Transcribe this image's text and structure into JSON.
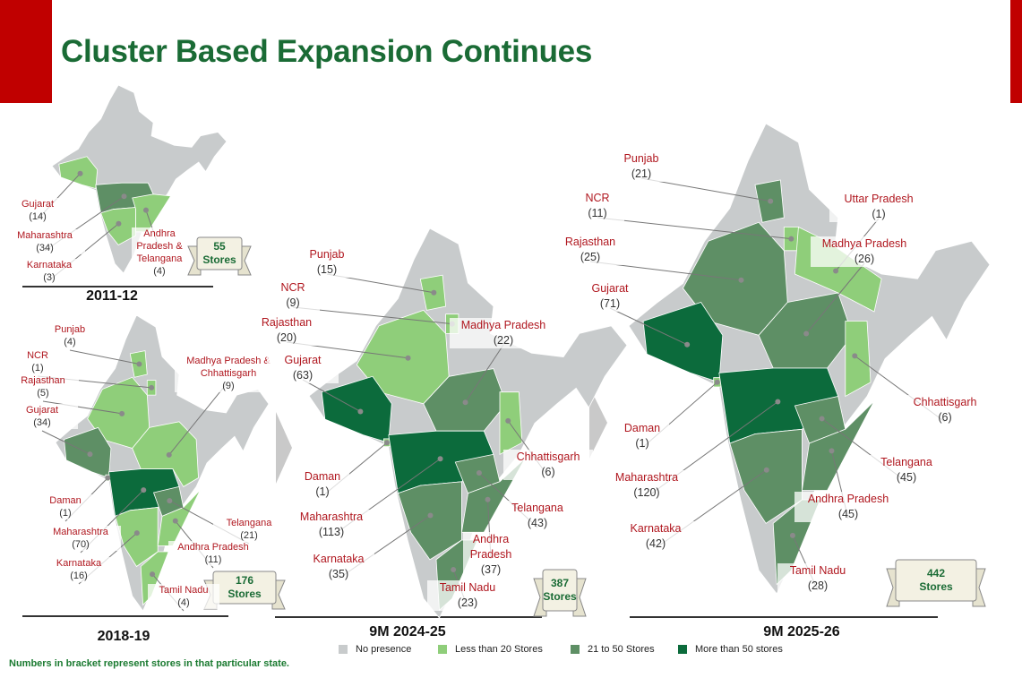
{
  "header": {
    "title": "Cluster Based Expansion Continues"
  },
  "maps": [
    {
      "period": "2011-12",
      "badge": {
        "count": "55",
        "label": "Stores"
      },
      "states": [
        {
          "name": "Gujarat",
          "stores": "(14)",
          "color": "#8fce7a"
        },
        {
          "name": "Maharashtra",
          "stores": "(34)",
          "color": "#5e8f65"
        },
        {
          "name": "Karnataka",
          "stores": "(3)",
          "color": "#8fce7a"
        },
        {
          "name": "Andhra Pradesh & Telangana",
          "stores": "(4)",
          "color": "#8fce7a"
        }
      ]
    },
    {
      "period": "2018-19",
      "badge": {
        "count": "176",
        "label": "Stores"
      },
      "states": [
        {
          "name": "Punjab",
          "stores": "(4)",
          "color": "#8fce7a"
        },
        {
          "name": "NCR",
          "stores": "(1)",
          "color": "#8fce7a"
        },
        {
          "name": "Rajasthan",
          "stores": "(5)",
          "color": "#8fce7a"
        },
        {
          "name": "Gujarat",
          "stores": "(34)",
          "color": "#5e8f65"
        },
        {
          "name": "Madhya Pradesh & Chhattisgarh",
          "stores": "(9)",
          "color": "#8fce7a"
        },
        {
          "name": "Daman",
          "stores": "(1)",
          "color": "#8fce7a"
        },
        {
          "name": "Maharashtra",
          "stores": "(70)",
          "color": "#0c6b3c"
        },
        {
          "name": "Karnataka",
          "stores": "(16)",
          "color": "#8fce7a"
        },
        {
          "name": "Telangana",
          "stores": "(21)",
          "color": "#5e8f65"
        },
        {
          "name": "Andhra Pradesh",
          "stores": "(11)",
          "color": "#8fce7a"
        },
        {
          "name": "Tamil Nadu",
          "stores": "(4)",
          "color": "#8fce7a"
        }
      ]
    },
    {
      "period": "9M 2024-25",
      "badge": {
        "count": "387",
        "label": "Stores"
      },
      "states": [
        {
          "name": "Punjab",
          "stores": "(15)",
          "color": "#8fce7a"
        },
        {
          "name": "NCR",
          "stores": "(9)",
          "color": "#8fce7a"
        },
        {
          "name": "Rajasthan",
          "stores": "(20)",
          "color": "#8fce7a"
        },
        {
          "name": "Gujarat",
          "stores": "(63)",
          "color": "#0c6b3c"
        },
        {
          "name": "Madhya Pradesh",
          "stores": "(22)",
          "color": "#5e8f65"
        },
        {
          "name": "Daman",
          "stores": "(1)",
          "color": "#8fce7a"
        },
        {
          "name": "Maharashtra",
          "stores": "(113)",
          "color": "#0c6b3c"
        },
        {
          "name": "Karnataka",
          "stores": "(35)",
          "color": "#5e8f65"
        },
        {
          "name": "Chhattisgarh",
          "stores": "(6)",
          "color": "#8fce7a"
        },
        {
          "name": "Telangana",
          "stores": "(43)",
          "color": "#5e8f65"
        },
        {
          "name": "Andhra Pradesh",
          "stores": "(37)",
          "color": "#5e8f65"
        },
        {
          "name": "Tamil Nadu",
          "stores": "(23)",
          "color": "#5e8f65"
        }
      ]
    },
    {
      "period": "9M 2025-26",
      "badge": {
        "count": "442",
        "label": "Stores"
      },
      "states": [
        {
          "name": "Punjab",
          "stores": "(21)",
          "color": "#5e8f65"
        },
        {
          "name": "NCR",
          "stores": "(11)",
          "color": "#8fce7a"
        },
        {
          "name": "Rajasthan",
          "stores": "(25)",
          "color": "#5e8f65"
        },
        {
          "name": "Gujarat",
          "stores": "(71)",
          "color": "#0c6b3c"
        },
        {
          "name": "Uttar Pradesh",
          "stores": "(1)",
          "color": "#8fce7a"
        },
        {
          "name": "Madhya Pradesh",
          "stores": "(26)",
          "color": "#5e8f65"
        },
        {
          "name": "Chhattisgarh",
          "stores": "(6)",
          "color": "#8fce7a"
        },
        {
          "name": "Daman",
          "stores": "(1)",
          "color": "#8fce7a"
        },
        {
          "name": "Maharashtra",
          "stores": "(120)",
          "color": "#0c6b3c"
        },
        {
          "name": "Karnataka",
          "stores": "(42)",
          "color": "#5e8f65"
        },
        {
          "name": "Telangana",
          "stores": "(45)",
          "color": "#5e8f65"
        },
        {
          "name": "Andhra Pradesh",
          "stores": "(45)",
          "color": "#5e8f65"
        },
        {
          "name": "Tamil Nadu",
          "stores": "(28)",
          "color": "#5e8f65"
        }
      ]
    }
  ],
  "legend": [
    {
      "label": "No presence",
      "color": "#c8cbcc"
    },
    {
      "label": "Less than 20 Stores",
      "color": "#8fce7a"
    },
    {
      "label": "21 to 50 Stores",
      "color": "#5e8f65"
    },
    {
      "label": "More than 50 stores",
      "color": "#0c6b3c"
    }
  ],
  "footnote": "Numbers in bracket represent stores in that particular state."
}
